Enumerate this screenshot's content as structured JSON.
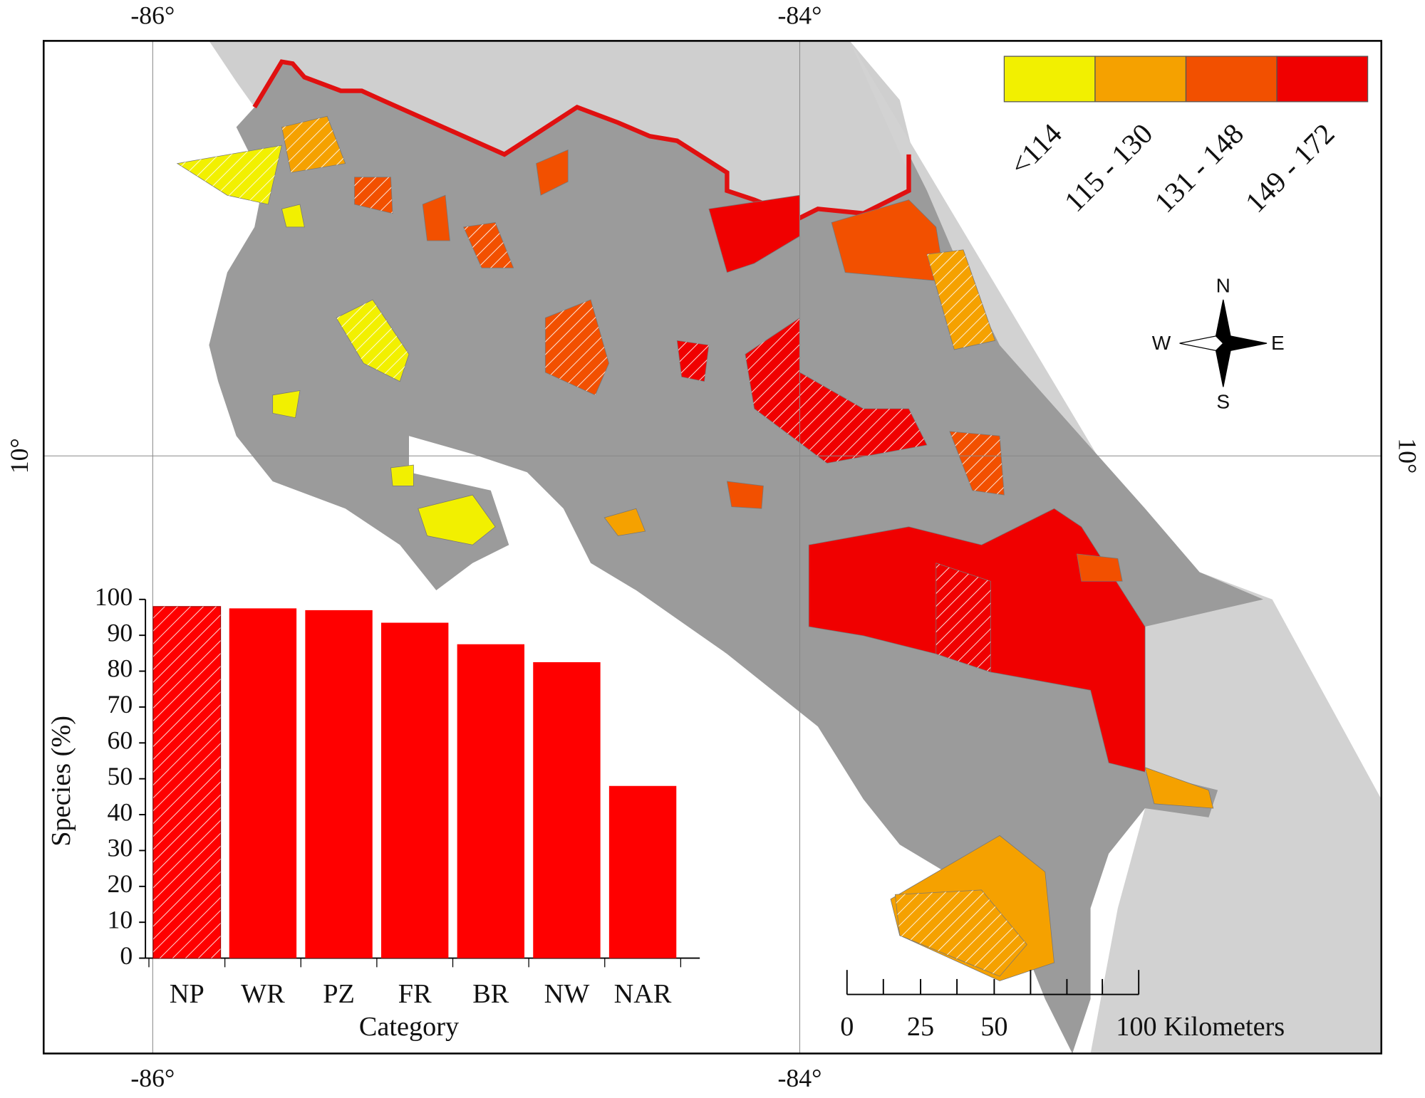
{
  "map": {
    "lon_labels": [
      "-86°",
      "-84°"
    ],
    "lat_label": "10°",
    "legend": [
      {
        "label": "<114",
        "color": "#f2f000"
      },
      {
        "label": "115 - 130",
        "color": "#f5a100"
      },
      {
        "label": "131 - 148",
        "color": "#f25000"
      },
      {
        "label": "149 - 172",
        "color": "#f00000"
      }
    ],
    "compass": {
      "n": "N",
      "s": "S",
      "e": "E",
      "w": "W"
    },
    "scale_labels": [
      "0",
      "25",
      "50",
      "100 Kilometers"
    ]
  },
  "chart_data": {
    "type": "bar",
    "xlabel": "Category",
    "ylabel": "Species (%)",
    "categories": [
      "NP",
      "WR",
      "PZ",
      "FR",
      "BR",
      "NW",
      "NAR"
    ],
    "values": [
      98,
      97.5,
      97,
      93.5,
      87.5,
      82.5,
      48
    ],
    "hatched": [
      true,
      false,
      false,
      false,
      false,
      false,
      false
    ],
    "color": "#ff0000",
    "ylim": [
      0,
      100
    ],
    "yticks": [
      0,
      10,
      20,
      30,
      40,
      50,
      60,
      70,
      80,
      90,
      100
    ]
  }
}
